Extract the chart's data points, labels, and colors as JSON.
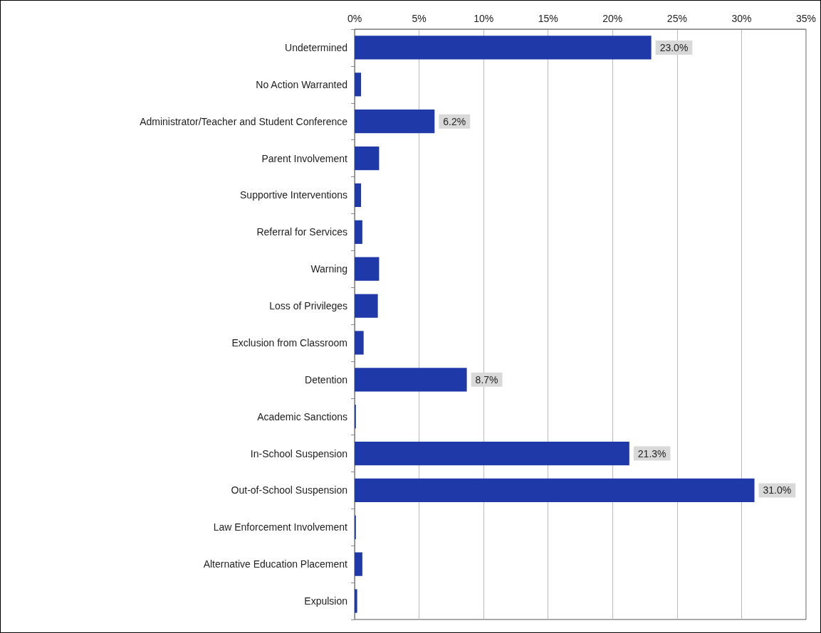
{
  "chart_data": {
    "type": "bar",
    "orientation": "horizontal",
    "categories": [
      "Undetermined",
      "No Action Warranted",
      "Administrator/Teacher and Student Conference",
      "Parent Involvement",
      "Supportive Interventions",
      "Referral for Services",
      "Warning",
      "Loss of Privileges",
      "Exclusion from Classroom",
      "Detention",
      "Academic Sanctions",
      "In-School Suspension",
      "Out-of-School Suspension",
      "Law Enforcement Involvement",
      "Alternative Education Placement",
      "Expulsion"
    ],
    "values": [
      23.0,
      0.5,
      6.2,
      1.9,
      0.5,
      0.6,
      1.9,
      1.8,
      0.7,
      8.7,
      0.1,
      21.3,
      31.0,
      0.1,
      0.6,
      0.2
    ],
    "value_labels": [
      "23.0%",
      null,
      "6.2%",
      null,
      null,
      null,
      null,
      null,
      null,
      "8.7%",
      null,
      "21.3%",
      "31.0%",
      null,
      null,
      null
    ],
    "color": "#1f3aa8",
    "xlim": [
      0,
      35
    ],
    "xticks": [
      {
        "value": 0,
        "label": "0%"
      },
      {
        "value": 5,
        "label": "5%"
      },
      {
        "value": 10,
        "label": "10%"
      },
      {
        "value": 15,
        "label": "15%"
      },
      {
        "value": 20,
        "label": "20%"
      },
      {
        "value": 25,
        "label": "25%"
      },
      {
        "value": 30,
        "label": "30%"
      },
      {
        "value": 35,
        "label": "35%"
      }
    ],
    "grid": "x"
  }
}
